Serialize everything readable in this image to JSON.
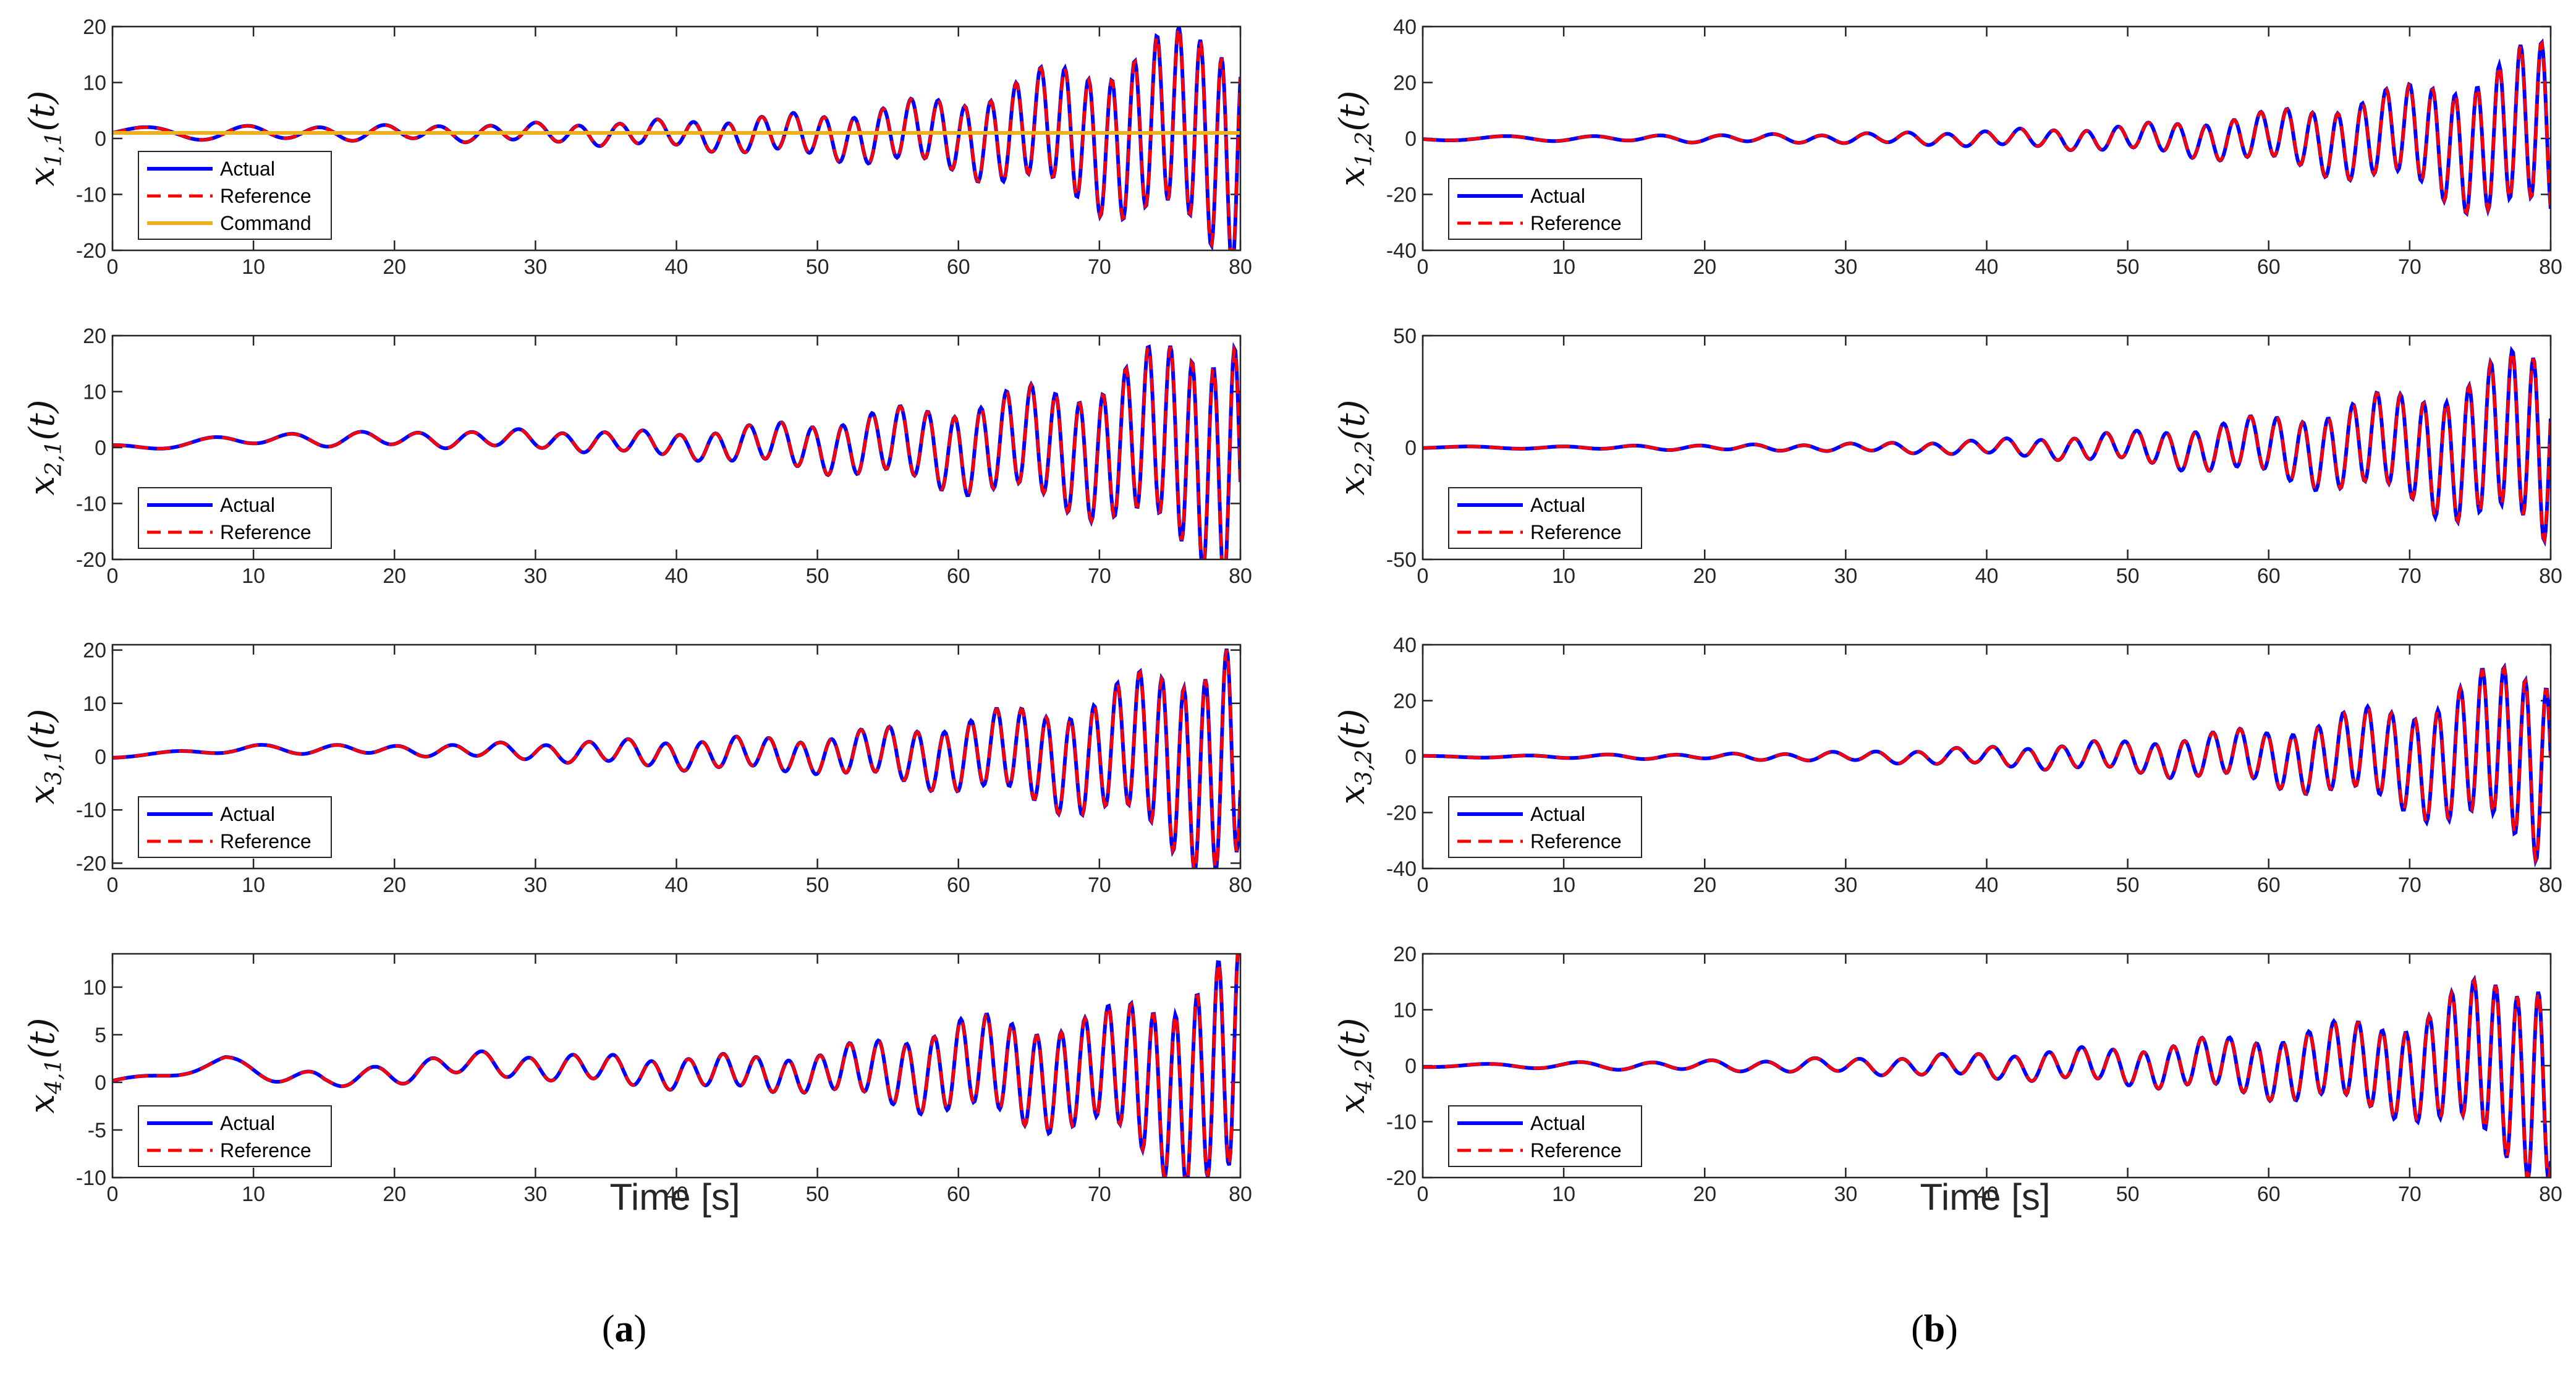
{
  "figure": {
    "panels": [
      {
        "caption_open": "(",
        "caption_letter": "a",
        "caption_close": ")",
        "xlabel": "Time [s]"
      },
      {
        "caption_open": "(",
        "caption_letter": "b",
        "caption_close": ")",
        "xlabel": "Time [s]"
      }
    ],
    "colors": {
      "actual": "#0000ff",
      "reference": "#ff0000",
      "command": "#edb120"
    }
  },
  "chart_data": [
    {
      "type": "line",
      "id": "x11",
      "column": 0,
      "row": 0,
      "ylabel": {
        "var": "x",
        "sub": "1,1",
        "arg": "(t)"
      },
      "xlim": [
        0,
        80
      ],
      "ylim": [
        -20,
        20
      ],
      "xticks": [
        0,
        10,
        20,
        30,
        40,
        50,
        60,
        70,
        80
      ],
      "yticks": [
        -20,
        -10,
        0,
        10,
        20
      ],
      "legend": [
        "Actual",
        "Reference",
        "Command"
      ],
      "command_value": 1,
      "amp_points": [
        [
          0,
          0.7
        ],
        [
          10,
          1.2
        ],
        [
          20,
          1.2
        ],
        [
          30,
          1.5
        ],
        [
          40,
          2.2
        ],
        [
          50,
          3.5
        ],
        [
          60,
          6
        ],
        [
          70,
          12
        ],
        [
          80,
          19
        ]
      ],
      "bias_points": [
        [
          0,
          1
        ],
        [
          30,
          1
        ],
        [
          50,
          0.5
        ],
        [
          70,
          1
        ],
        [
          80,
          0
        ]
      ]
    },
    {
      "type": "line",
      "id": "x21",
      "column": 0,
      "row": 1,
      "ylabel": {
        "var": "x",
        "sub": "2,1",
        "arg": "(t)"
      },
      "xlim": [
        0,
        80
      ],
      "ylim": [
        -20,
        20
      ],
      "xticks": [
        0,
        10,
        20,
        30,
        40,
        50,
        60,
        70,
        80
      ],
      "yticks": [
        -20,
        -10,
        0,
        10,
        20
      ],
      "legend": [
        "Actual",
        "Reference"
      ],
      "amp_points": [
        [
          0,
          0.5
        ],
        [
          10,
          1
        ],
        [
          20,
          1.2
        ],
        [
          30,
          1.5
        ],
        [
          40,
          2
        ],
        [
          50,
          4
        ],
        [
          60,
          7
        ],
        [
          70,
          11
        ],
        [
          80,
          21
        ]
      ],
      "bias_points": [
        [
          0,
          0
        ],
        [
          10,
          1.5
        ],
        [
          30,
          1.5
        ],
        [
          40,
          0.5
        ],
        [
          80,
          0
        ]
      ]
    },
    {
      "type": "line",
      "id": "x31",
      "column": 0,
      "row": 2,
      "ylabel": {
        "var": "x",
        "sub": "3,1",
        "arg": "(t)"
      },
      "xlim": [
        0,
        80
      ],
      "ylim": [
        -21,
        21
      ],
      "xticks": [
        0,
        10,
        20,
        30,
        40,
        50,
        60,
        70,
        80
      ],
      "yticks": [
        -20,
        -10,
        0,
        10,
        20
      ],
      "legend": [
        "Actual",
        "Reference"
      ],
      "amp_points": [
        [
          0,
          0.3
        ],
        [
          10,
          0.7
        ],
        [
          20,
          0.8
        ],
        [
          30,
          1.5
        ],
        [
          40,
          2.5
        ],
        [
          50,
          3
        ],
        [
          60,
          6
        ],
        [
          70,
          10
        ],
        [
          80,
          21
        ]
      ],
      "bias_points": [
        [
          0,
          0
        ],
        [
          10,
          1.5
        ],
        [
          30,
          1
        ],
        [
          40,
          0.5
        ],
        [
          80,
          0
        ]
      ]
    },
    {
      "type": "line",
      "id": "x41",
      "column": 0,
      "row": 3,
      "ylabel": {
        "var": "x",
        "sub": "4,1",
        "arg": "(t)"
      },
      "xlim": [
        0,
        80
      ],
      "ylim": [
        -10,
        13.5
      ],
      "xticks": [
        0,
        10,
        20,
        30,
        40,
        50,
        60,
        70,
        80
      ],
      "yticks": [
        -10,
        -5,
        0,
        5,
        10
      ],
      "legend": [
        "Actual",
        "Reference"
      ],
      "amp_points": [
        [
          0,
          0.2
        ],
        [
          10,
          0.7
        ],
        [
          20,
          1
        ],
        [
          30,
          1.2
        ],
        [
          40,
          1.5
        ],
        [
          50,
          1.8
        ],
        [
          60,
          4.5
        ],
        [
          70,
          5.5
        ],
        [
          80,
          12
        ]
      ],
      "bias_points": [
        [
          0,
          0
        ],
        [
          8,
          2
        ],
        [
          15,
          0
        ],
        [
          25,
          2
        ],
        [
          40,
          1
        ],
        [
          50,
          1
        ],
        [
          60,
          1.5
        ],
        [
          80,
          0
        ]
      ]
    },
    {
      "type": "line",
      "id": "x12",
      "column": 1,
      "row": 0,
      "ylabel": {
        "var": "x",
        "sub": "1,2",
        "arg": "(t)"
      },
      "xlim": [
        0,
        80
      ],
      "ylim": [
        -40,
        40
      ],
      "xticks": [
        0,
        10,
        20,
        30,
        40,
        50,
        60,
        70,
        80
      ],
      "yticks": [
        -40,
        -20,
        0,
        20,
        40
      ],
      "legend": [
        "Actual",
        "Reference"
      ],
      "amp_points": [
        [
          0,
          0.5
        ],
        [
          10,
          0.8
        ],
        [
          20,
          1.2
        ],
        [
          30,
          1.5
        ],
        [
          40,
          2.5
        ],
        [
          50,
          4
        ],
        [
          60,
          8
        ],
        [
          70,
          16
        ],
        [
          80,
          30
        ]
      ],
      "bias_points": [
        [
          0,
          0
        ],
        [
          80,
          0
        ]
      ]
    },
    {
      "type": "line",
      "id": "x22",
      "column": 1,
      "row": 1,
      "ylabel": {
        "var": "x",
        "sub": "2,2",
        "arg": "(t)"
      },
      "xlim": [
        0,
        80
      ],
      "ylim": [
        -50,
        50
      ],
      "xticks": [
        0,
        10,
        20,
        30,
        40,
        50,
        60,
        70,
        80
      ],
      "yticks": [
        -50,
        0,
        50
      ],
      "legend": [
        "Actual",
        "Reference"
      ],
      "amp_points": [
        [
          0,
          0.3
        ],
        [
          10,
          0.6
        ],
        [
          20,
          1
        ],
        [
          30,
          1.5
        ],
        [
          40,
          3
        ],
        [
          50,
          6
        ],
        [
          60,
          12
        ],
        [
          70,
          22
        ],
        [
          80,
          40
        ]
      ],
      "bias_points": [
        [
          0,
          0
        ],
        [
          80,
          0
        ]
      ]
    },
    {
      "type": "line",
      "id": "x32",
      "column": 1,
      "row": 2,
      "ylabel": {
        "var": "x",
        "sub": "3,2",
        "arg": "(t)"
      },
      "xlim": [
        0,
        80
      ],
      "ylim": [
        -40,
        40
      ],
      "xticks": [
        0,
        10,
        20,
        30,
        40,
        50,
        60,
        70,
        80
      ],
      "yticks": [
        -40,
        -20,
        0,
        20,
        40
      ],
      "legend": [
        "Actual",
        "Reference"
      ],
      "amp_points": [
        [
          0,
          0.3
        ],
        [
          10,
          0.6
        ],
        [
          20,
          0.8
        ],
        [
          30,
          1.5
        ],
        [
          40,
          3
        ],
        [
          50,
          5
        ],
        [
          60,
          9
        ],
        [
          70,
          17
        ],
        [
          80,
          33
        ]
      ],
      "bias_points": [
        [
          0,
          0
        ],
        [
          80,
          0
        ]
      ]
    },
    {
      "type": "line",
      "id": "x42",
      "column": 1,
      "row": 3,
      "ylabel": {
        "var": "x",
        "sub": "4,2",
        "arg": "(t)"
      },
      "xlim": [
        0,
        80
      ],
      "ylim": [
        -20,
        20
      ],
      "xticks": [
        0,
        10,
        20,
        30,
        40,
        50,
        60,
        70,
        80
      ],
      "yticks": [
        -20,
        -10,
        0,
        10,
        20
      ],
      "legend": [
        "Actual",
        "Reference"
      ],
      "amp_points": [
        [
          0,
          0.3
        ],
        [
          10,
          0.5
        ],
        [
          20,
          0.8
        ],
        [
          30,
          1.2
        ],
        [
          40,
          2
        ],
        [
          50,
          3
        ],
        [
          60,
          5
        ],
        [
          70,
          8
        ],
        [
          80,
          18
        ]
      ],
      "bias_points": [
        [
          0,
          0
        ],
        [
          80,
          0
        ]
      ]
    }
  ]
}
